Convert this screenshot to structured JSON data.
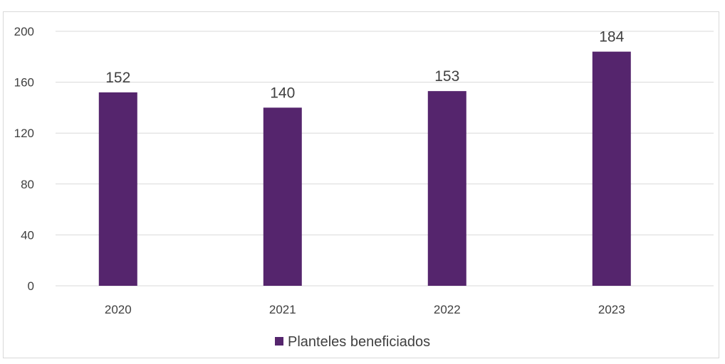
{
  "chart_data": {
    "type": "bar",
    "categories": [
      "2020",
      "2021",
      "2022",
      "2023"
    ],
    "series": [
      {
        "name": "Planteles beneficiados",
        "values": [
          152,
          140,
          153,
          184
        ],
        "color": "#55256d"
      }
    ],
    "ylim": [
      0,
      200
    ],
    "yticks": [
      0,
      40,
      80,
      120,
      160,
      200
    ],
    "grid": true,
    "legend": "bottom",
    "data_labels": true
  }
}
